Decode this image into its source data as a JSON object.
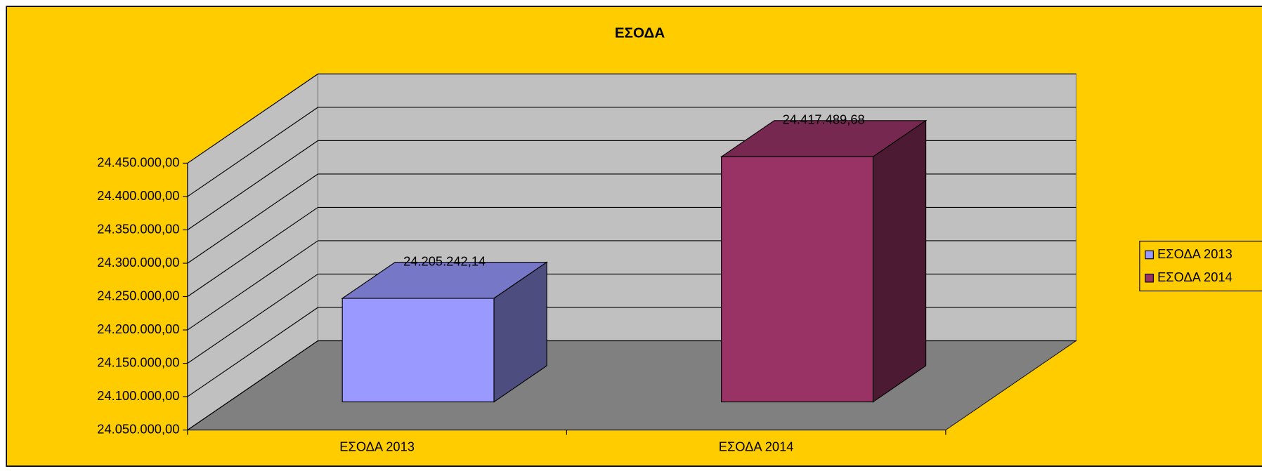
{
  "chart_data": {
    "type": "bar3d",
    "title": "ΕΣΟΔΑ",
    "categories": [
      "ΕΣΟΔΑ 2013",
      "ΕΣΟΔΑ 2014"
    ],
    "values": [
      24205242.14,
      24417489.68
    ],
    "value_labels": [
      "24.205.242,14",
      "24.417.489,68"
    ],
    "colors": [
      "#9999FF",
      "#993366"
    ],
    "ylim": [
      24050000,
      24450000
    ],
    "yticks": [
      {
        "value": 24050000,
        "label": "24.050.000,00"
      },
      {
        "value": 24100000,
        "label": "24.100.000,00"
      },
      {
        "value": 24150000,
        "label": "24.150.000,00"
      },
      {
        "value": 24200000,
        "label": "24.200.000,00"
      },
      {
        "value": 24250000,
        "label": "24.250.000,00"
      },
      {
        "value": 24300000,
        "label": "24.300.000,00"
      },
      {
        "value": 24350000,
        "label": "24.350.000,00"
      },
      {
        "value": 24400000,
        "label": "24.400.000,00"
      },
      {
        "value": 24450000,
        "label": "24.450.000,00"
      }
    ],
    "grid": true,
    "legend": "right"
  }
}
